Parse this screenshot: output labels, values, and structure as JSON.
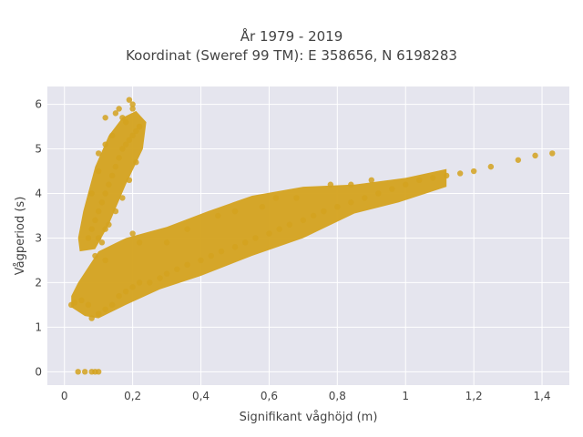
{
  "chart_data": {
    "type": "scatter",
    "title_lines": [
      "År 1979 - 2019",
      "Koordinat (Sweref 99 TM): E 358656, N 6198283"
    ],
    "xlabel": "Signifikant våghöjd (m)",
    "ylabel": "Vågperiod (s)",
    "xlim": [
      -0.05,
      1.48
    ],
    "ylim": [
      -0.3,
      6.4
    ],
    "x_ticks": [
      {
        "value": 0,
        "label": "0"
      },
      {
        "value": 0.2,
        "label": "0,2"
      },
      {
        "value": 0.4,
        "label": "0,4"
      },
      {
        "value": 0.6,
        "label": "0,6"
      },
      {
        "value": 0.8,
        "label": "0,8"
      },
      {
        "value": 1.0,
        "label": "1"
      },
      {
        "value": 1.2,
        "label": "1,2"
      },
      {
        "value": 1.4,
        "label": "1,4"
      }
    ],
    "y_ticks": [
      {
        "value": 0,
        "label": "0"
      },
      {
        "value": 1,
        "label": "1"
      },
      {
        "value": 2,
        "label": "2"
      },
      {
        "value": 3,
        "label": "3"
      },
      {
        "value": 4,
        "label": "4"
      },
      {
        "value": 5,
        "label": "5"
      },
      {
        "value": 6,
        "label": "6"
      }
    ],
    "grid": true,
    "legend": "none",
    "marker_color": "#D4A21E",
    "background_color": "#E5E5EE",
    "series": [
      {
        "x": [
          0.04,
          0.06,
          0.08,
          0.09,
          0.1,
          0.02,
          0.03,
          0.05,
          0.07,
          0.08,
          0.1,
          0.12,
          0.14,
          0.16,
          0.18,
          0.2,
          0.22,
          0.25,
          0.28,
          0.3,
          0.33,
          0.36,
          0.4,
          0.43,
          0.46,
          0.5,
          0.53,
          0.56,
          0.6,
          0.63,
          0.66,
          0.7,
          0.73,
          0.76,
          0.8,
          0.84,
          0.88,
          0.92,
          0.96,
          1.0,
          1.04,
          1.08,
          1.12,
          1.16,
          1.2,
          1.25,
          1.33,
          1.38,
          1.43,
          0.12,
          0.1,
          0.12,
          0.22,
          0.2,
          0.5,
          0.45,
          0.78,
          0.62,
          0.9,
          0.36,
          0.3,
          0.58,
          0.68,
          0.84,
          0.07,
          0.08,
          0.09,
          0.1,
          0.11,
          0.12,
          0.13,
          0.14,
          0.15,
          0.16,
          0.17,
          0.18,
          0.19,
          0.2,
          0.21,
          0.22,
          0.09,
          0.11,
          0.13,
          0.15,
          0.17,
          0.19,
          0.21,
          0.1,
          0.14,
          0.18,
          0.12,
          0.16,
          0.2,
          0.08,
          0.1,
          0.12,
          0.19,
          0.2,
          0.17,
          0.22,
          0.15
        ],
        "y": [
          0.0,
          0.0,
          0.0,
          0.0,
          0.0,
          1.5,
          1.55,
          1.6,
          1.5,
          1.2,
          1.3,
          1.4,
          1.5,
          1.7,
          1.8,
          1.9,
          2.0,
          2.0,
          2.1,
          2.2,
          2.3,
          2.4,
          2.5,
          2.6,
          2.7,
          2.8,
          2.9,
          3.0,
          3.1,
          3.2,
          3.3,
          3.4,
          3.5,
          3.6,
          3.7,
          3.8,
          3.9,
          4.0,
          4.1,
          4.2,
          4.3,
          4.35,
          4.4,
          4.45,
          4.5,
          4.6,
          4.75,
          4.85,
          4.9,
          2.5,
          3.0,
          3.2,
          2.9,
          3.1,
          3.6,
          3.5,
          4.2,
          3.9,
          4.3,
          3.2,
          2.9,
          3.7,
          3.9,
          4.2,
          3.0,
          3.2,
          3.4,
          3.6,
          3.8,
          4.0,
          4.2,
          4.4,
          4.6,
          4.8,
          5.0,
          5.1,
          5.2,
          5.3,
          5.4,
          5.5,
          2.6,
          2.9,
          3.3,
          3.6,
          3.9,
          4.3,
          4.7,
          4.9,
          5.3,
          5.6,
          5.7,
          5.9,
          6.0,
          4.0,
          4.5,
          5.1,
          6.1,
          5.9,
          5.7,
          5.5,
          5.8
        ]
      }
    ]
  }
}
